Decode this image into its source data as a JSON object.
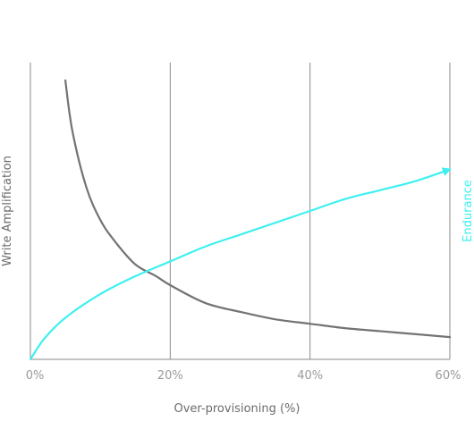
{
  "chart_data": {
    "type": "line",
    "xlabel": "Over-provisioning (%)",
    "ylabel": "Write Amplification",
    "y2label": "Endurance",
    "xlim": [
      0,
      60
    ],
    "x_ticks": [
      0,
      20,
      40,
      60
    ],
    "x_tick_labels": [
      "0%",
      "20%",
      "40%",
      "60%"
    ],
    "vertical_gridlines_at": [
      0,
      20,
      40,
      60
    ],
    "y_ticks_shown": false,
    "series": [
      {
        "name": "Write Amplification",
        "axis": "left",
        "color": "#737373",
        "x": [
          5,
          6,
          8,
          10,
          12,
          15,
          18,
          20,
          25,
          30,
          35,
          40,
          45,
          50,
          55,
          60
        ],
        "y": [
          0.94,
          0.77,
          0.58,
          0.47,
          0.4,
          0.32,
          0.28,
          0.25,
          0.19,
          0.16,
          0.135,
          0.12,
          0.105,
          0.095,
          0.085,
          0.075
        ]
      },
      {
        "name": "Endurance",
        "axis": "right",
        "color": "#3ff0f0",
        "arrow_end": true,
        "x": [
          0,
          2,
          5,
          10,
          15,
          20,
          25,
          30,
          35,
          40,
          45,
          50,
          55,
          60
        ],
        "y": [
          0,
          0.07,
          0.14,
          0.22,
          0.28,
          0.33,
          0.38,
          0.42,
          0.46,
          0.5,
          0.54,
          0.57,
          0.6,
          0.64
        ]
      }
    ]
  }
}
